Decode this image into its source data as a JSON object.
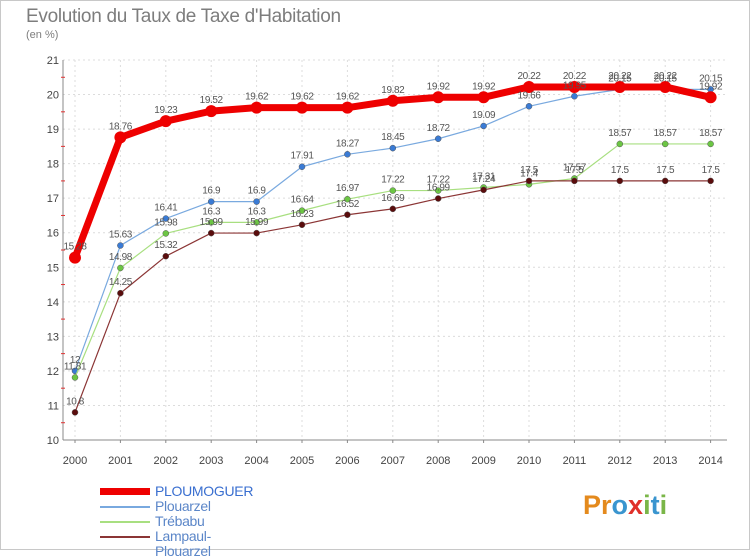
{
  "header": {
    "title": "Evolution du Taux de Taxe d'Habitation",
    "unit": "(en %)"
  },
  "logo": {
    "letters": [
      "P",
      "r",
      "o",
      "x",
      "i",
      "t",
      "i"
    ],
    "colors": [
      "#e48a1d",
      "#e48a1d",
      "#3a95cf",
      "#e0302a",
      "#7ab648",
      "#3a95cf",
      "#7ab648"
    ]
  },
  "chart_data": {
    "type": "line",
    "x": [
      "2000",
      "2001",
      "2002",
      "2003",
      "2004",
      "2005",
      "2006",
      "2007",
      "2008",
      "2009",
      "2010",
      "2011",
      "2012",
      "2013",
      "2014"
    ],
    "ylim": [
      10,
      21
    ],
    "yticks": [
      10,
      11,
      12,
      13,
      14,
      15,
      16,
      17,
      18,
      19,
      20,
      21
    ],
    "grid": true,
    "legend_position": "bottom-left",
    "series": [
      {
        "name": "PLOUMOGUER",
        "color": "#ee0000",
        "line_color": "#ee0000",
        "width": 7,
        "values": [
          15.28,
          18.76,
          19.23,
          19.52,
          19.62,
          19.62,
          19.62,
          19.82,
          19.92,
          19.92,
          20.22,
          20.22,
          20.22,
          20.22,
          19.92
        ],
        "labels": [
          "15.28",
          "18.76",
          "19.23",
          "19.52",
          "19.62",
          "19.62",
          "19.62",
          "19.82",
          "19.92",
          "19.92",
          "20.22",
          "20.22",
          "20.22",
          "20.22",
          "19.92"
        ]
      },
      {
        "name": "Plouarzel",
        "color": "#3a7bd5",
        "line_color": "#79a9df",
        "width": 1.2,
        "values": [
          12,
          15.63,
          16.41,
          16.9,
          16.9,
          17.91,
          18.27,
          18.45,
          18.72,
          19.09,
          19.66,
          19.95,
          20.15,
          20.15,
          20.15
        ],
        "labels": [
          "12",
          "15.63",
          "16.41",
          "16.9",
          "16.9",
          "17.91",
          "18.27",
          "18.45",
          "18.72",
          "19.09",
          "19.66",
          "19.95",
          "20.15",
          "20.15",
          "20.15"
        ]
      },
      {
        "name": "Trébabu",
        "color": "#6cc644",
        "line_color": "#a8df80",
        "width": 1.2,
        "values": [
          11.81,
          14.98,
          15.98,
          16.3,
          16.3,
          16.64,
          16.97,
          17.22,
          17.22,
          17.31,
          17.4,
          17.57,
          18.57,
          18.57,
          18.57
        ],
        "labels": [
          "11.81",
          "14.98",
          "15.98",
          "16.3",
          "16.3",
          "16.64",
          "16.97",
          "17.22",
          "17.22",
          "17.31",
          "17.4",
          "17.57",
          "18.57",
          "18.57",
          "18.57"
        ]
      },
      {
        "name": "Lampaul-Plouarzel",
        "color": "#5a0c0c",
        "line_color": "#8b3535",
        "width": 1.2,
        "values": [
          10.8,
          14.25,
          15.32,
          15.99,
          15.99,
          16.23,
          16.52,
          16.69,
          16.99,
          17.24,
          17.5,
          17.5,
          17.5,
          17.5,
          17.5
        ],
        "labels": [
          "10.8",
          "14.25",
          "15.32",
          "15.99",
          "15.99",
          "16.23",
          "16.52",
          "16.69",
          "16.99",
          "17.24",
          "17.5",
          "17.5",
          "17.5",
          "17.5",
          "17.5"
        ]
      }
    ]
  }
}
